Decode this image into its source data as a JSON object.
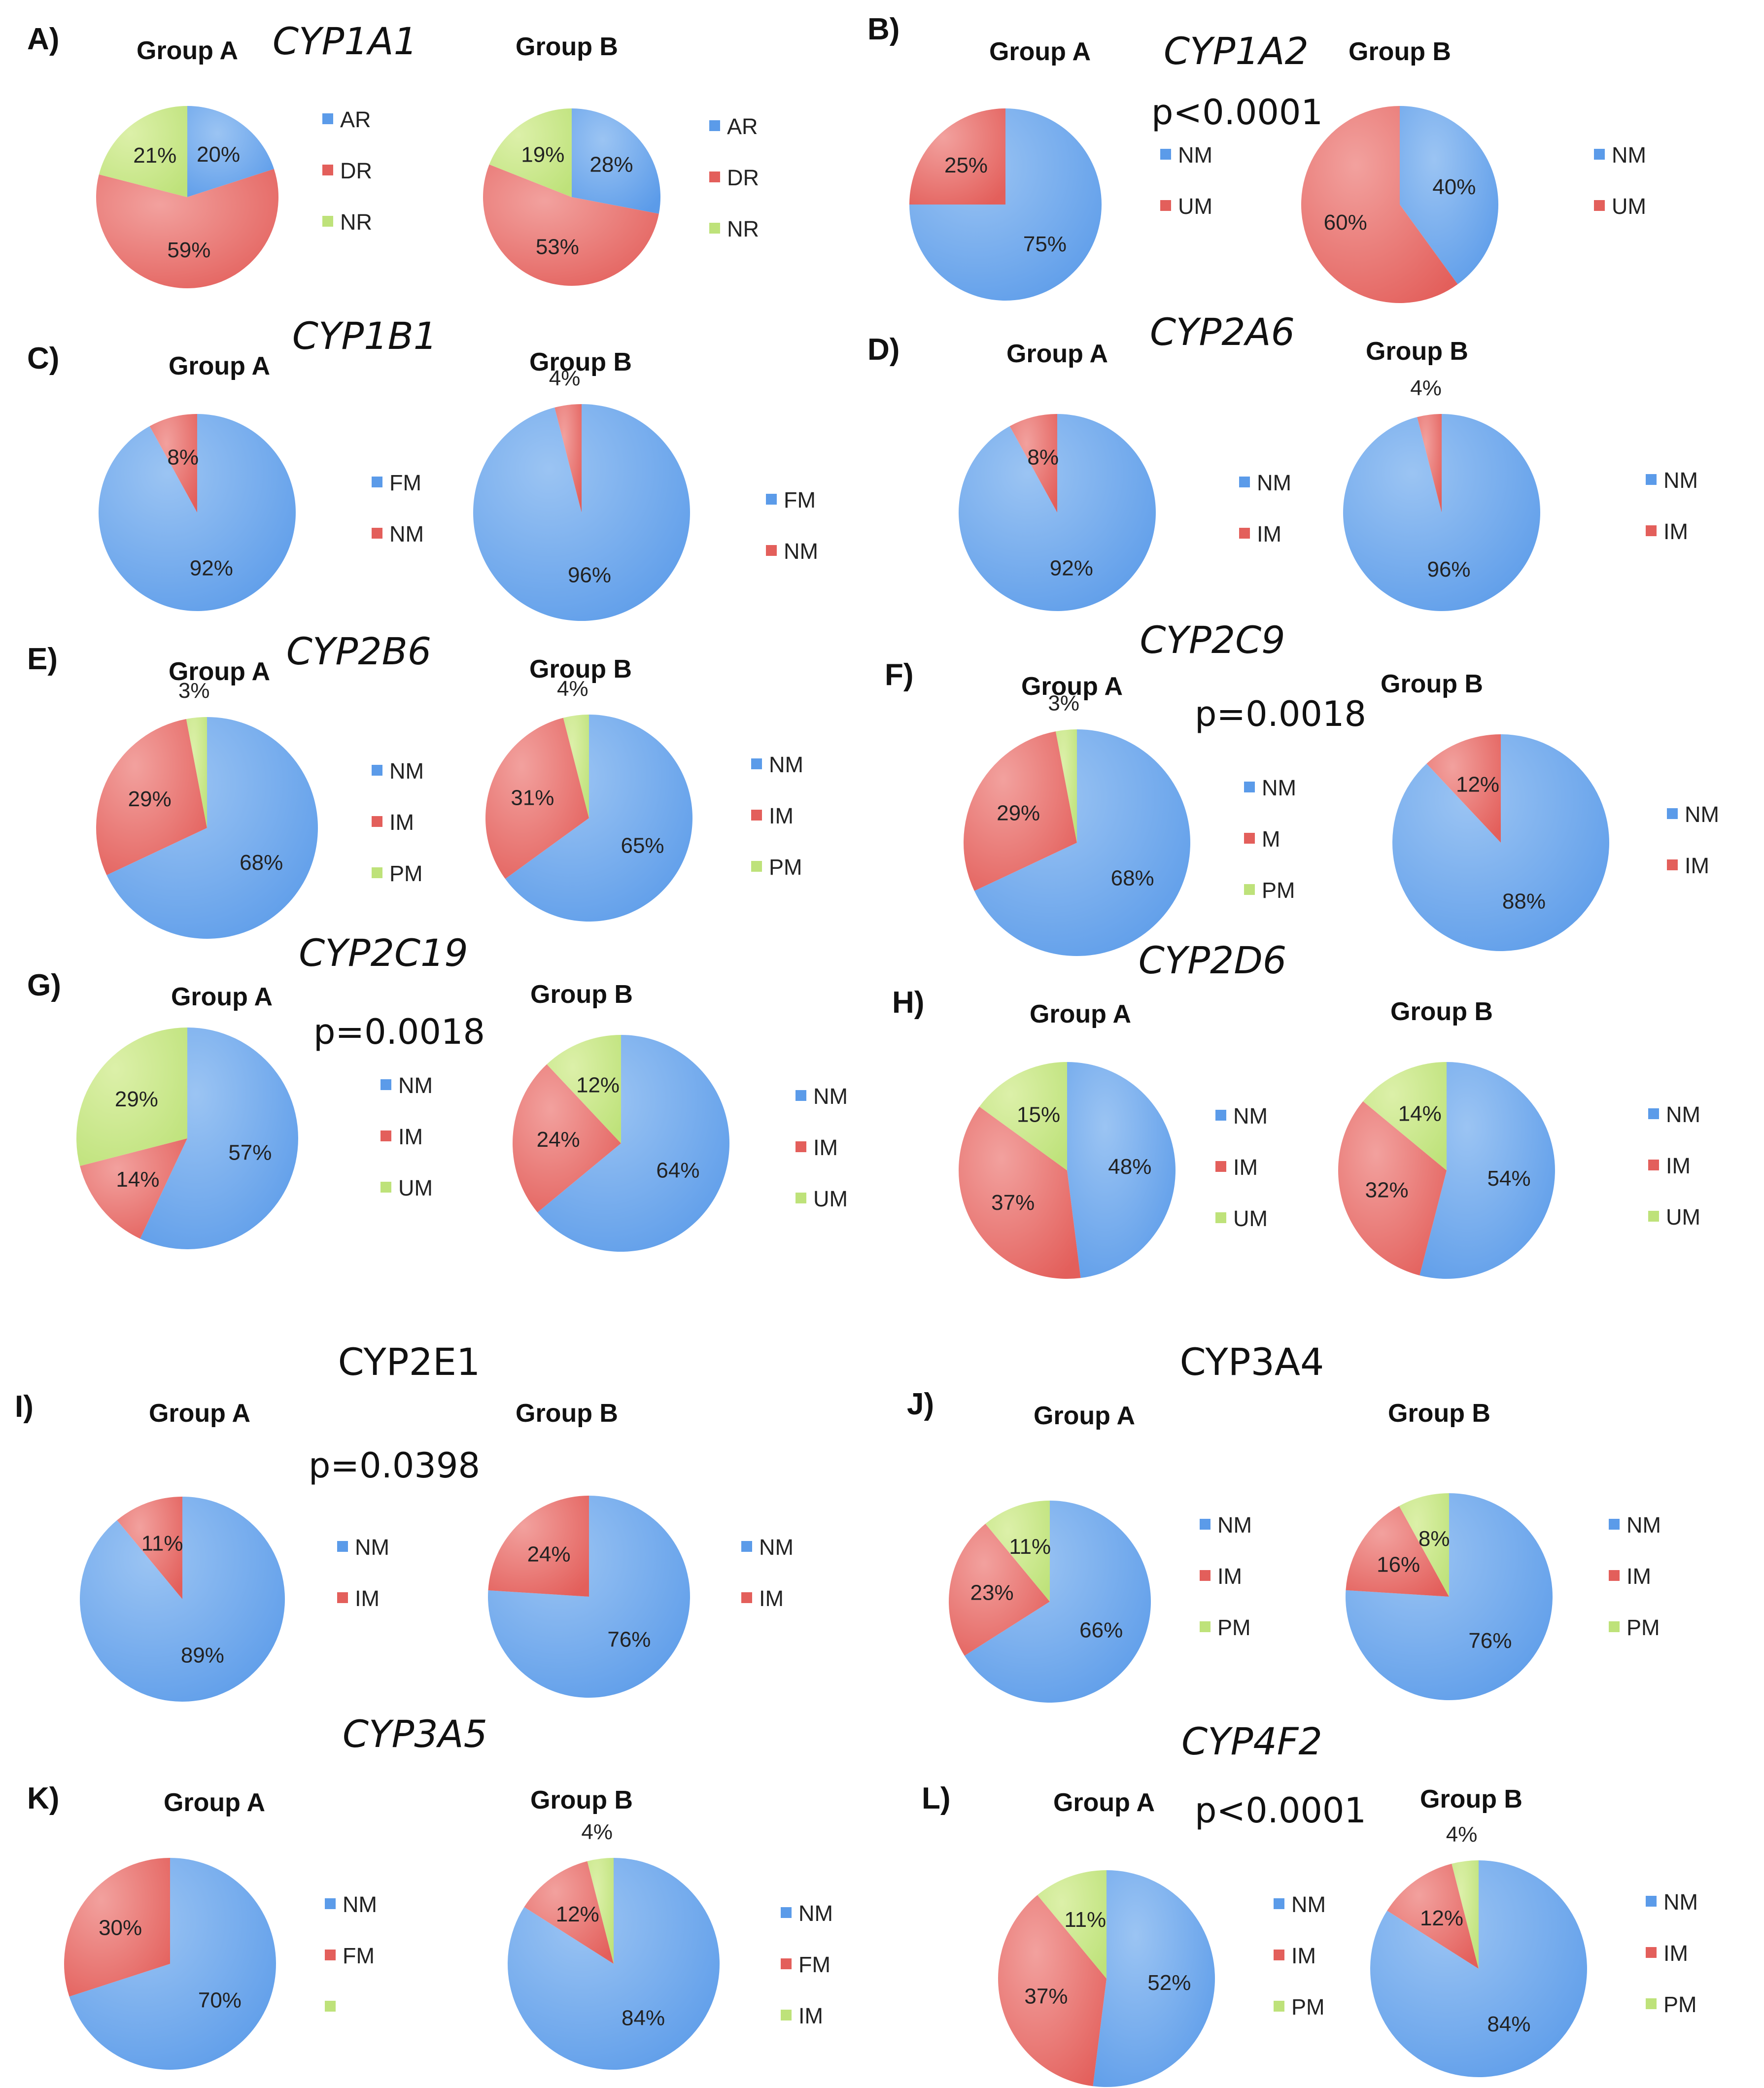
{
  "colors": {
    "blue": "#5B9BE9",
    "red": "#E35F5B",
    "green": "#BEE27A",
    "blue_light": "#9BC4F3",
    "red_light": "#F2A19E",
    "green_light": "#DCF0A9"
  },
  "chart_data": [
    {
      "panel": "A)",
      "gene": "CYP1A1",
      "gene_style": "italic",
      "type": "pie",
      "pvalue": "",
      "groups": [
        {
          "name": "Group A",
          "slices": [
            {
              "label": "AR",
              "value": 20,
              "text": "20%",
              "color": "blue"
            },
            {
              "label": "DR",
              "value": 59,
              "text": "59%",
              "color": "red"
            },
            {
              "label": "NR",
              "value": 21,
              "text": "21%",
              "color": "green"
            }
          ]
        },
        {
          "name": "Group B",
          "slices": [
            {
              "label": "AR",
              "value": 28,
              "text": "28%",
              "color": "blue"
            },
            {
              "label": "DR",
              "value": 53,
              "text": "53%",
              "color": "red"
            },
            {
              "label": "NR",
              "value": 19,
              "text": "19%",
              "color": "green"
            }
          ]
        }
      ]
    },
    {
      "panel": "B)",
      "gene": "CYP1A2",
      "gene_style": "italic",
      "type": "pie",
      "pvalue": "p<0.0001",
      "groups": [
        {
          "name": "Group A",
          "slices": [
            {
              "label": "NM",
              "value": 75,
              "text": "75%",
              "color": "blue"
            },
            {
              "label": "UM",
              "value": 25,
              "text": "25%",
              "color": "red"
            }
          ]
        },
        {
          "name": "Group B",
          "slices": [
            {
              "label": "NM",
              "value": 40,
              "text": "40%",
              "color": "blue"
            },
            {
              "label": "UM",
              "value": 60,
              "text": "60%",
              "color": "red"
            }
          ]
        }
      ]
    },
    {
      "panel": "C)",
      "gene": "CYP1B1",
      "gene_style": "italic",
      "type": "pie",
      "pvalue": "",
      "groups": [
        {
          "name": "Group A",
          "slices": [
            {
              "label": "FM",
              "value": 92,
              "text": "92%",
              "color": "blue"
            },
            {
              "label": "NM",
              "value": 8,
              "text": "8%",
              "color": "red"
            }
          ]
        },
        {
          "name": "Group B",
          "slices": [
            {
              "label": "FM",
              "value": 96,
              "text": "96%",
              "color": "blue"
            },
            {
              "label": "NM",
              "value": 4,
              "text": "4%",
              "color": "red"
            }
          ]
        }
      ]
    },
    {
      "panel": "D)",
      "gene": "CYP2A6",
      "gene_style": "italic",
      "type": "pie",
      "pvalue": "",
      "groups": [
        {
          "name": "Group A",
          "slices": [
            {
              "label": "NM",
              "value": 92,
              "text": "92%",
              "color": "blue"
            },
            {
              "label": "IM",
              "value": 8,
              "text": "8%",
              "color": "red"
            }
          ]
        },
        {
          "name": "Group B",
          "slices": [
            {
              "label": "NM",
              "value": 96,
              "text": "96%",
              "color": "blue"
            },
            {
              "label": "IM",
              "value": 4,
              "text": "4%",
              "color": "red"
            }
          ]
        }
      ]
    },
    {
      "panel": "E)",
      "gene": "CYP2B6",
      "gene_style": "italic",
      "type": "pie",
      "pvalue": "",
      "groups": [
        {
          "name": "Group A",
          "slices": [
            {
              "label": "NM",
              "value": 68,
              "text": "68%",
              "color": "blue"
            },
            {
              "label": "IM",
              "value": 29,
              "text": "29%",
              "color": "red"
            },
            {
              "label": "PM",
              "value": 3,
              "text": "3%",
              "color": "green"
            }
          ]
        },
        {
          "name": "Group B",
          "slices": [
            {
              "label": "NM",
              "value": 65,
              "text": "65%",
              "color": "blue"
            },
            {
              "label": "IM",
              "value": 31,
              "text": "31%",
              "color": "red"
            },
            {
              "label": "PM",
              "value": 4,
              "text": "4%",
              "color": "green"
            }
          ]
        }
      ]
    },
    {
      "panel": "F)",
      "gene": "CYP2C9",
      "gene_style": "italic",
      "type": "pie",
      "pvalue": "p=0.0018",
      "groups": [
        {
          "name": "Group A",
          "slices": [
            {
              "label": "NM",
              "value": 68,
              "text": "68%",
              "color": "blue"
            },
            {
              "label": "M",
              "value": 29,
              "text": "29%",
              "color": "red"
            },
            {
              "label": "PM",
              "value": 3,
              "text": "3%",
              "color": "green"
            }
          ]
        },
        {
          "name": "Group B",
          "slices": [
            {
              "label": "NM",
              "value": 88,
              "text": "88%",
              "color": "blue"
            },
            {
              "label": "IM",
              "value": 12,
              "text": "12%",
              "color": "red"
            }
          ]
        }
      ]
    },
    {
      "panel": "G)",
      "gene": "CYP2C19",
      "gene_style": "italic",
      "type": "pie",
      "pvalue": "p=0.0018",
      "groups": [
        {
          "name": "Group A",
          "slices": [
            {
              "label": "NM",
              "value": 57,
              "text": "57%",
              "color": "blue"
            },
            {
              "label": "IM",
              "value": 14,
              "text": "14%",
              "color": "red"
            },
            {
              "label": "UM",
              "value": 29,
              "text": "29%",
              "color": "green"
            }
          ]
        },
        {
          "name": "Group B",
          "slices": [
            {
              "label": "NM",
              "value": 64,
              "text": "64%",
              "color": "blue"
            },
            {
              "label": "IM",
              "value": 24,
              "text": "24%",
              "color": "red"
            },
            {
              "label": "UM",
              "value": 12,
              "text": "12%",
              "color": "green"
            }
          ]
        }
      ]
    },
    {
      "panel": "H)",
      "gene": "CYP2D6",
      "gene_style": "italic",
      "type": "pie",
      "pvalue": "",
      "groups": [
        {
          "name": "Group A",
          "slices": [
            {
              "label": "NM",
              "value": 48,
              "text": "48%",
              "color": "blue"
            },
            {
              "label": "IM",
              "value": 37,
              "text": "37%",
              "color": "red"
            },
            {
              "label": "UM",
              "value": 15,
              "text": "15%",
              "color": "green"
            }
          ]
        },
        {
          "name": "Group B",
          "slices": [
            {
              "label": "NM",
              "value": 54,
              "text": "54%",
              "color": "blue"
            },
            {
              "label": "IM",
              "value": 32,
              "text": "32%",
              "color": "red"
            },
            {
              "label": "UM",
              "value": 14,
              "text": "14%",
              "color": "green"
            }
          ]
        }
      ]
    },
    {
      "panel": "I)",
      "gene": "CYP2E1",
      "gene_style": "upright",
      "type": "pie",
      "pvalue": "p=0.0398",
      "groups": [
        {
          "name": "Group A",
          "slices": [
            {
              "label": "NM",
              "value": 89,
              "text": "89%",
              "color": "blue"
            },
            {
              "label": "IM",
              "value": 11,
              "text": "11%",
              "color": "red"
            }
          ]
        },
        {
          "name": "Group B",
          "slices": [
            {
              "label": "NM",
              "value": 76,
              "text": "76%",
              "color": "blue"
            },
            {
              "label": "IM",
              "value": 24,
              "text": "24%",
              "color": "red"
            }
          ]
        }
      ]
    },
    {
      "panel": "J)",
      "gene": "CYP3A4",
      "gene_style": "upright",
      "type": "pie",
      "pvalue": "",
      "groups": [
        {
          "name": "Group A",
          "slices": [
            {
              "label": "NM",
              "value": 66,
              "text": "66%",
              "color": "blue"
            },
            {
              "label": "IM",
              "value": 23,
              "text": "23%",
              "color": "red"
            },
            {
              "label": "PM",
              "value": 11,
              "text": "11%",
              "color": "green"
            }
          ]
        },
        {
          "name": "Group B",
          "slices": [
            {
              "label": "NM",
              "value": 76,
              "text": "76%",
              "color": "blue"
            },
            {
              "label": "IM",
              "value": 16,
              "text": "16%",
              "color": "red"
            },
            {
              "label": "PM",
              "value": 8,
              "text": "8%",
              "color": "green"
            }
          ]
        }
      ]
    },
    {
      "panel": "K)",
      "gene": "CYP3A5",
      "gene_style": "italic",
      "type": "pie",
      "pvalue": "",
      "groups": [
        {
          "name": "Group A",
          "slices": [
            {
              "label": "NM",
              "value": 70,
              "text": "70%",
              "color": "blue"
            },
            {
              "label": "FM",
              "value": 30,
              "text": "30%",
              "color": "red"
            },
            {
              "label": "",
              "value": 0,
              "text": "",
              "color": "green"
            }
          ]
        },
        {
          "name": "Group B",
          "slices": [
            {
              "label": "NM",
              "value": 84,
              "text": "84%",
              "color": "blue"
            },
            {
              "label": "FM",
              "value": 12,
              "text": "12%",
              "color": "red"
            },
            {
              "label": "IM",
              "value": 4,
              "text": "4%",
              "color": "green"
            }
          ]
        }
      ]
    },
    {
      "panel": "L)",
      "gene": "CYP4F2",
      "gene_style": "italic",
      "type": "pie",
      "pvalue": "p<0.0001",
      "groups": [
        {
          "name": "Group A",
          "slices": [
            {
              "label": "NM",
              "value": 52,
              "text": "52%",
              "color": "blue"
            },
            {
              "label": "IM",
              "value": 37,
              "text": "37%",
              "color": "red"
            },
            {
              "label": "PM",
              "value": 11,
              "text": "11%",
              "color": "green"
            }
          ]
        },
        {
          "name": "Group B",
          "slices": [
            {
              "label": "NM",
              "value": 84,
              "text": "84%",
              "color": "blue"
            },
            {
              "label": "IM",
              "value": 12,
              "text": "12%",
              "color": "red"
            },
            {
              "label": "PM",
              "value": 4,
              "text": "4%",
              "color": "green"
            }
          ]
        }
      ]
    }
  ]
}
